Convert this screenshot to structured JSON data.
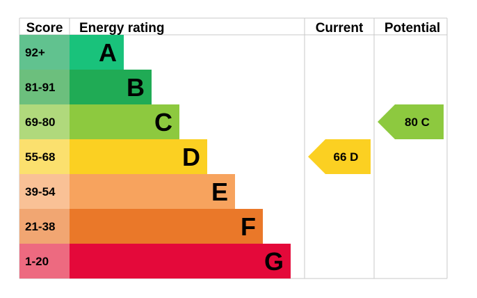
{
  "headers": {
    "score": "Score",
    "rating": "Energy rating",
    "current": "Current",
    "potential": "Potential"
  },
  "chart_data": {
    "type": "bar",
    "title": "",
    "xlabel": "",
    "ylabel": "",
    "categories": [
      "A",
      "B",
      "C",
      "D",
      "E",
      "F",
      "G"
    ],
    "bands": [
      {
        "letter": "A",
        "range": "92+",
        "band_color": "#19c27b",
        "score_color": "#61c28f"
      },
      {
        "letter": "B",
        "range": "81-91",
        "band_color": "#20ab55",
        "score_color": "#6cbf7d"
      },
      {
        "letter": "C",
        "range": "69-80",
        "band_color": "#8dc93f",
        "score_color": "#b0d97c"
      },
      {
        "letter": "D",
        "range": "55-68",
        "band_color": "#fbd022",
        "score_color": "#fbe06e"
      },
      {
        "letter": "E",
        "range": "39-54",
        "band_color": "#f7a35e",
        "score_color": "#f9c196"
      },
      {
        "letter": "F",
        "range": "21-38",
        "band_color": "#ea7829",
        "score_color": "#f1a672"
      },
      {
        "letter": "G",
        "range": "1-20",
        "band_color": "#e4093a",
        "score_color": "#ed6a80"
      }
    ],
    "current": {
      "score": 66,
      "letter": "D",
      "label": "66  D",
      "color": "#fbd022"
    },
    "potential": {
      "score": 80,
      "letter": "C",
      "label": "80  C",
      "color": "#8dc93f"
    }
  }
}
